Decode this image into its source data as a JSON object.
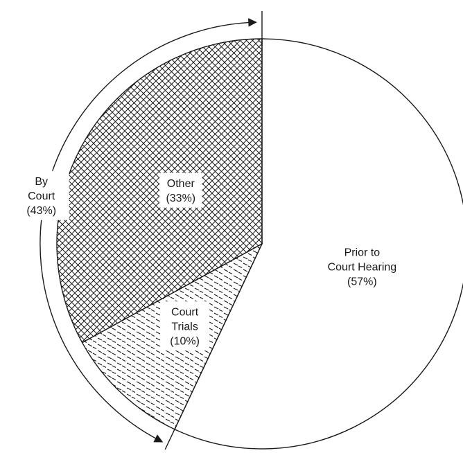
{
  "chart_data": {
    "type": "pie",
    "title": "",
    "slices": [
      {
        "label_lines": [
          "Prior to",
          "Court Hearing",
          "(57%)"
        ],
        "value": 57,
        "pattern": "none"
      },
      {
        "label_lines": [
          "Court",
          "Trials",
          "(10%)"
        ],
        "value": 10,
        "pattern": "dashes"
      },
      {
        "label_lines": [
          "Other",
          "(33%)"
        ],
        "value": 33,
        "pattern": "crosshatch"
      }
    ],
    "group_annotation": {
      "label_lines": [
        "By",
        "Court",
        "(43%)"
      ],
      "value": 43,
      "spans": [
        "Court Trials",
        "Other"
      ]
    },
    "colors": {
      "stroke": "#1a1a1a",
      "fill": "#ffffff"
    }
  }
}
